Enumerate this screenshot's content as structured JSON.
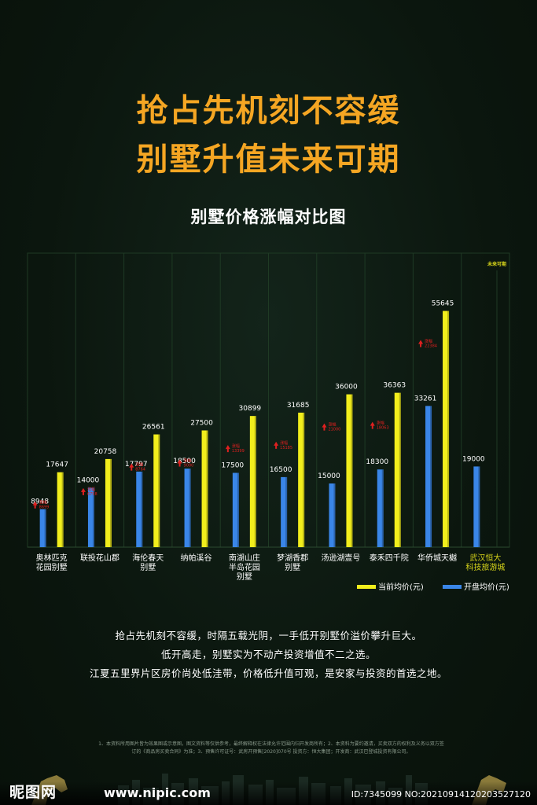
{
  "headline": {
    "line1": "抢占先机刻不容缓",
    "line2": "别墅升值未来可期"
  },
  "chart_data": {
    "type": "bar",
    "title": "别墅价格涨幅对比图",
    "ylim": [
      0,
      60000
    ],
    "categories": [
      "奥林匹克\n花园别墅",
      "联投花山郡",
      "海伦春天\n别墅",
      "纳帕溪谷",
      "南湖山庄\n半岛花园\n别墅",
      "梦湖香郡\n别墅",
      "汤逊湖壹号",
      "泰禾四千院",
      "华侨城天樾",
      "武汉恒大\n科技旅游城"
    ],
    "highlight_category_index": 9,
    "series": [
      {
        "name": "开盘均价(元)",
        "color": "#3a86e8",
        "values": [
          8948,
          14000,
          17797,
          18500,
          17500,
          16500,
          15000,
          18300,
          33261,
          19000
        ]
      },
      {
        "name": "当前均价(元)",
        "color": "#f2ee1c",
        "values": [
          17647,
          20758,
          26561,
          27500,
          30899,
          31685,
          36000,
          36363,
          55645,
          null
        ]
      }
    ],
    "increase_label": "涨幅",
    "increases": [
      8699,
      6758,
      8764,
      9000,
      13399,
      15185,
      21000,
      18063,
      22384,
      null
    ],
    "future_label": "未来可期",
    "legend_position": "bottom-right",
    "grid": "vertical"
  },
  "body": {
    "p1": "抢占先机刻不容缓，时隔五载光阴，一手低开别墅价溢价攀升巨大。",
    "p2": "低开高走，别墅实为不动产投资增值不二之选。",
    "p3": "江夏五里界片区房价尚处低洼带，价格低升值可观，是安家与投资的首选之地。"
  },
  "disclaimer": {
    "line1": "1、本资料所用图片皆为效果图或示意图，图文资料等仅供参考，最终解释权在法律允许范围内归开发商所有；2、本资料为要约邀请，买卖双方的权利及义务以双方签",
    "line2": "订的《商品房买卖合同》为准；3、预售许可证号：武房开预售[2020]070号 投资方：恒大集团；开发商：武汉巴登城投资有限公司。"
  },
  "watermark": {
    "logo": "昵图网",
    "site": "www.nipic.com",
    "id": "ID:7345099 NO:20210914120203527120"
  },
  "colors": {
    "headline": "#f5a623",
    "current": "#f2ee1c",
    "opening": "#3a86e8",
    "arrow": "#e02020",
    "highlight": "#d4d21a"
  }
}
